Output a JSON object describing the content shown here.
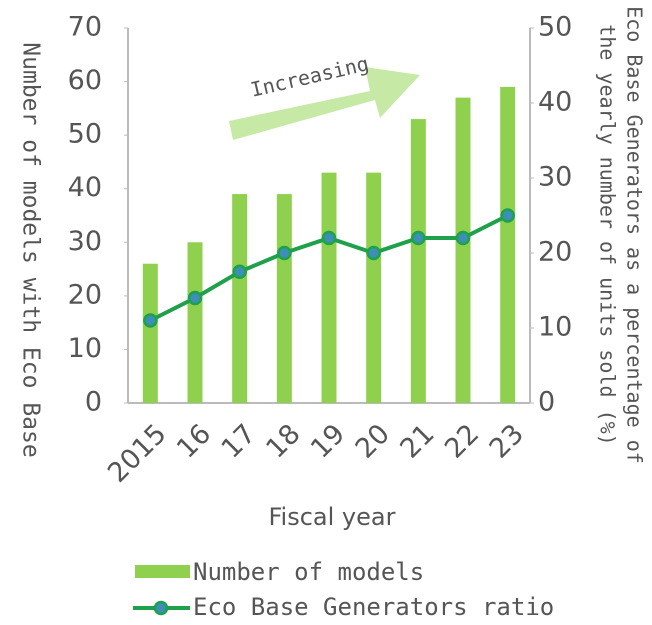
{
  "chart_data": {
    "type": "bar_line",
    "categories": [
      "2015",
      "16",
      "17",
      "18",
      "19",
      "20",
      "21",
      "22",
      "23"
    ],
    "series": [
      {
        "name": "Number of models",
        "color": "#8fd14f",
        "values": [
          26,
          30,
          39,
          39,
          43,
          43,
          53,
          57,
          59
        ]
      },
      {
        "name": "Eco Base Generators ratio",
        "color": "#1fa04b",
        "marker_color": "#3d8fb8",
        "axis": "y2",
        "values": [
          11,
          14,
          17.5,
          20,
          22,
          20,
          22,
          22,
          25
        ]
      }
    ],
    "ylim": [
      0,
      70
    ],
    "yticks": [
      0,
      10,
      20,
      30,
      40,
      50,
      60,
      70
    ],
    "y2lim": [
      0,
      50
    ],
    "y2ticks": [
      0,
      10,
      20,
      30,
      40,
      50
    ],
    "y_label": "Number of models with Eco Base",
    "y2_label": [
      "Eco Base Generators as a percentage of",
      "the yearly number of units sold (%)"
    ],
    "x_label": "Fiscal year",
    "annotation": "Increasing",
    "grid": false
  }
}
